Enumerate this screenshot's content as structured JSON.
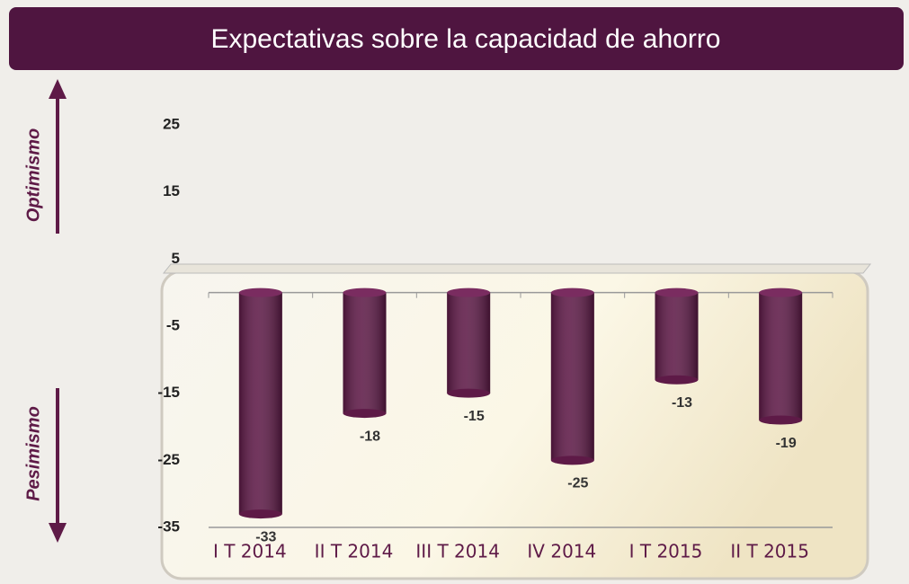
{
  "chart_data": {
    "type": "bar",
    "title": "Expectativas sobre la capacidad de ahorro",
    "annotations": [
      "Optimismo",
      "Pesimismo"
    ],
    "categories": [
      "I T 2014",
      "II T 2014",
      "III T 2014",
      "IV 2014",
      "I T 2015",
      "II T 2015"
    ],
    "values": [
      -33,
      -18,
      -15,
      -25,
      -13,
      -19
    ],
    "color": "#5e1a47",
    "ylim": [
      -35,
      25
    ],
    "yticks": [
      25,
      15,
      5,
      -5,
      -15,
      -25,
      -35
    ],
    "grid": false
  }
}
